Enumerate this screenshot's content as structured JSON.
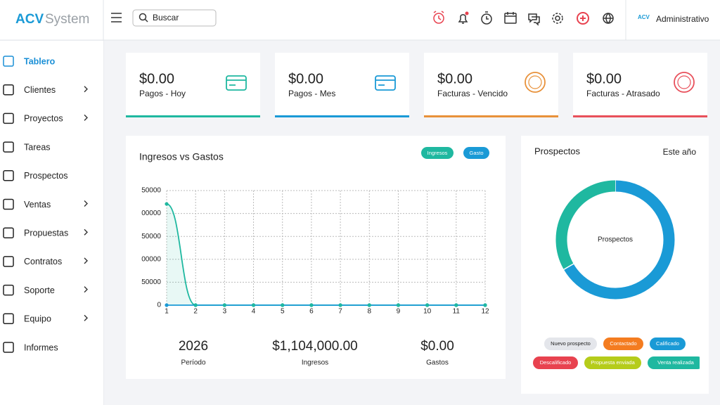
{
  "header": {
    "logo_bold": "ACV",
    "logo_light": "System",
    "search_placeholder": "Buscar",
    "user": "Administrativo"
  },
  "sidebar": {
    "items": [
      {
        "label": "Tablero",
        "submenu": false,
        "active": true
      },
      {
        "label": "Clientes",
        "submenu": true,
        "active": false
      },
      {
        "label": "Proyectos",
        "submenu": true,
        "active": false
      },
      {
        "label": "Tareas",
        "submenu": false,
        "active": false
      },
      {
        "label": "Prospectos",
        "submenu": false,
        "active": false
      },
      {
        "label": "Ventas",
        "submenu": true,
        "active": false
      },
      {
        "label": "Propuestas",
        "submenu": true,
        "active": false
      },
      {
        "label": "Contratos",
        "submenu": true,
        "active": false
      },
      {
        "label": "Soporte",
        "submenu": true,
        "active": false
      },
      {
        "label": "Equipo",
        "submenu": true,
        "active": false
      },
      {
        "label": "Informes",
        "submenu": false,
        "active": false
      }
    ]
  },
  "cards": [
    {
      "value": "$0.00",
      "label": "Pagos - Hoy",
      "color": "#1fb8a0"
    },
    {
      "value": "$0.00",
      "label": "Pagos - Mes",
      "color": "#1a9ad6"
    },
    {
      "value": "$0.00",
      "label": "Facturas - Vencido",
      "color": "#e8913a"
    },
    {
      "value": "$0.00",
      "label": "Facturas - Atrasado",
      "color": "#e8505b"
    }
  ],
  "chart_data": [
    {
      "type": "line",
      "title": "Ingresos vs Gastos",
      "x": [
        1,
        2,
        3,
        4,
        5,
        6,
        7,
        8,
        9,
        10,
        11,
        12
      ],
      "xlim": [
        1,
        12
      ],
      "xticks": [
        1,
        2,
        3,
        4,
        5,
        6,
        7,
        8,
        9,
        10,
        11,
        12
      ],
      "ylim": [
        0,
        1250000
      ],
      "yticks": [
        0,
        {
          "value": 250000,
          "label": "50000"
        },
        {
          "value": 500000,
          "label": "00000"
        },
        {
          "value": 750000,
          "label": "50000"
        },
        {
          "value": 1000000,
          "label": "00000"
        },
        {
          "value": 1250000,
          "label": "50000"
        }
      ],
      "grid": true,
      "series": [
        {
          "name": "Ingresos",
          "color": "#1fb8a0",
          "values": [
            1104000,
            0,
            0,
            0,
            0,
            0,
            0,
            0,
            0,
            0,
            0,
            0
          ]
        },
        {
          "name": "Gasto",
          "color": "#1a9ad6",
          "values": [
            0,
            0,
            0,
            0,
            0,
            0,
            0,
            0,
            0,
            0,
            0,
            0
          ]
        }
      ]
    },
    {
      "type": "donut",
      "title": "Prospectos",
      "period": "Este año",
      "center_label": "Prospectos",
      "categories": [
        "Nuevo prospecto",
        "Contactado",
        "Calificado",
        "Descalificado",
        "Propuesta enviada",
        "Venta realizada"
      ],
      "values": [
        0,
        0,
        2,
        0,
        0,
        1
      ],
      "colors": [
        "#e4e6eb",
        "#f47c20",
        "#1a9ad6",
        "#e8424f",
        "#b5cc1a",
        "#1fb8a0"
      ]
    }
  ],
  "summary": [
    {
      "value": "2026",
      "label": "Período"
    },
    {
      "value": "$1,104,000.00",
      "label": "Ingresos"
    },
    {
      "value": "$0.00",
      "label": "Gastos"
    }
  ]
}
